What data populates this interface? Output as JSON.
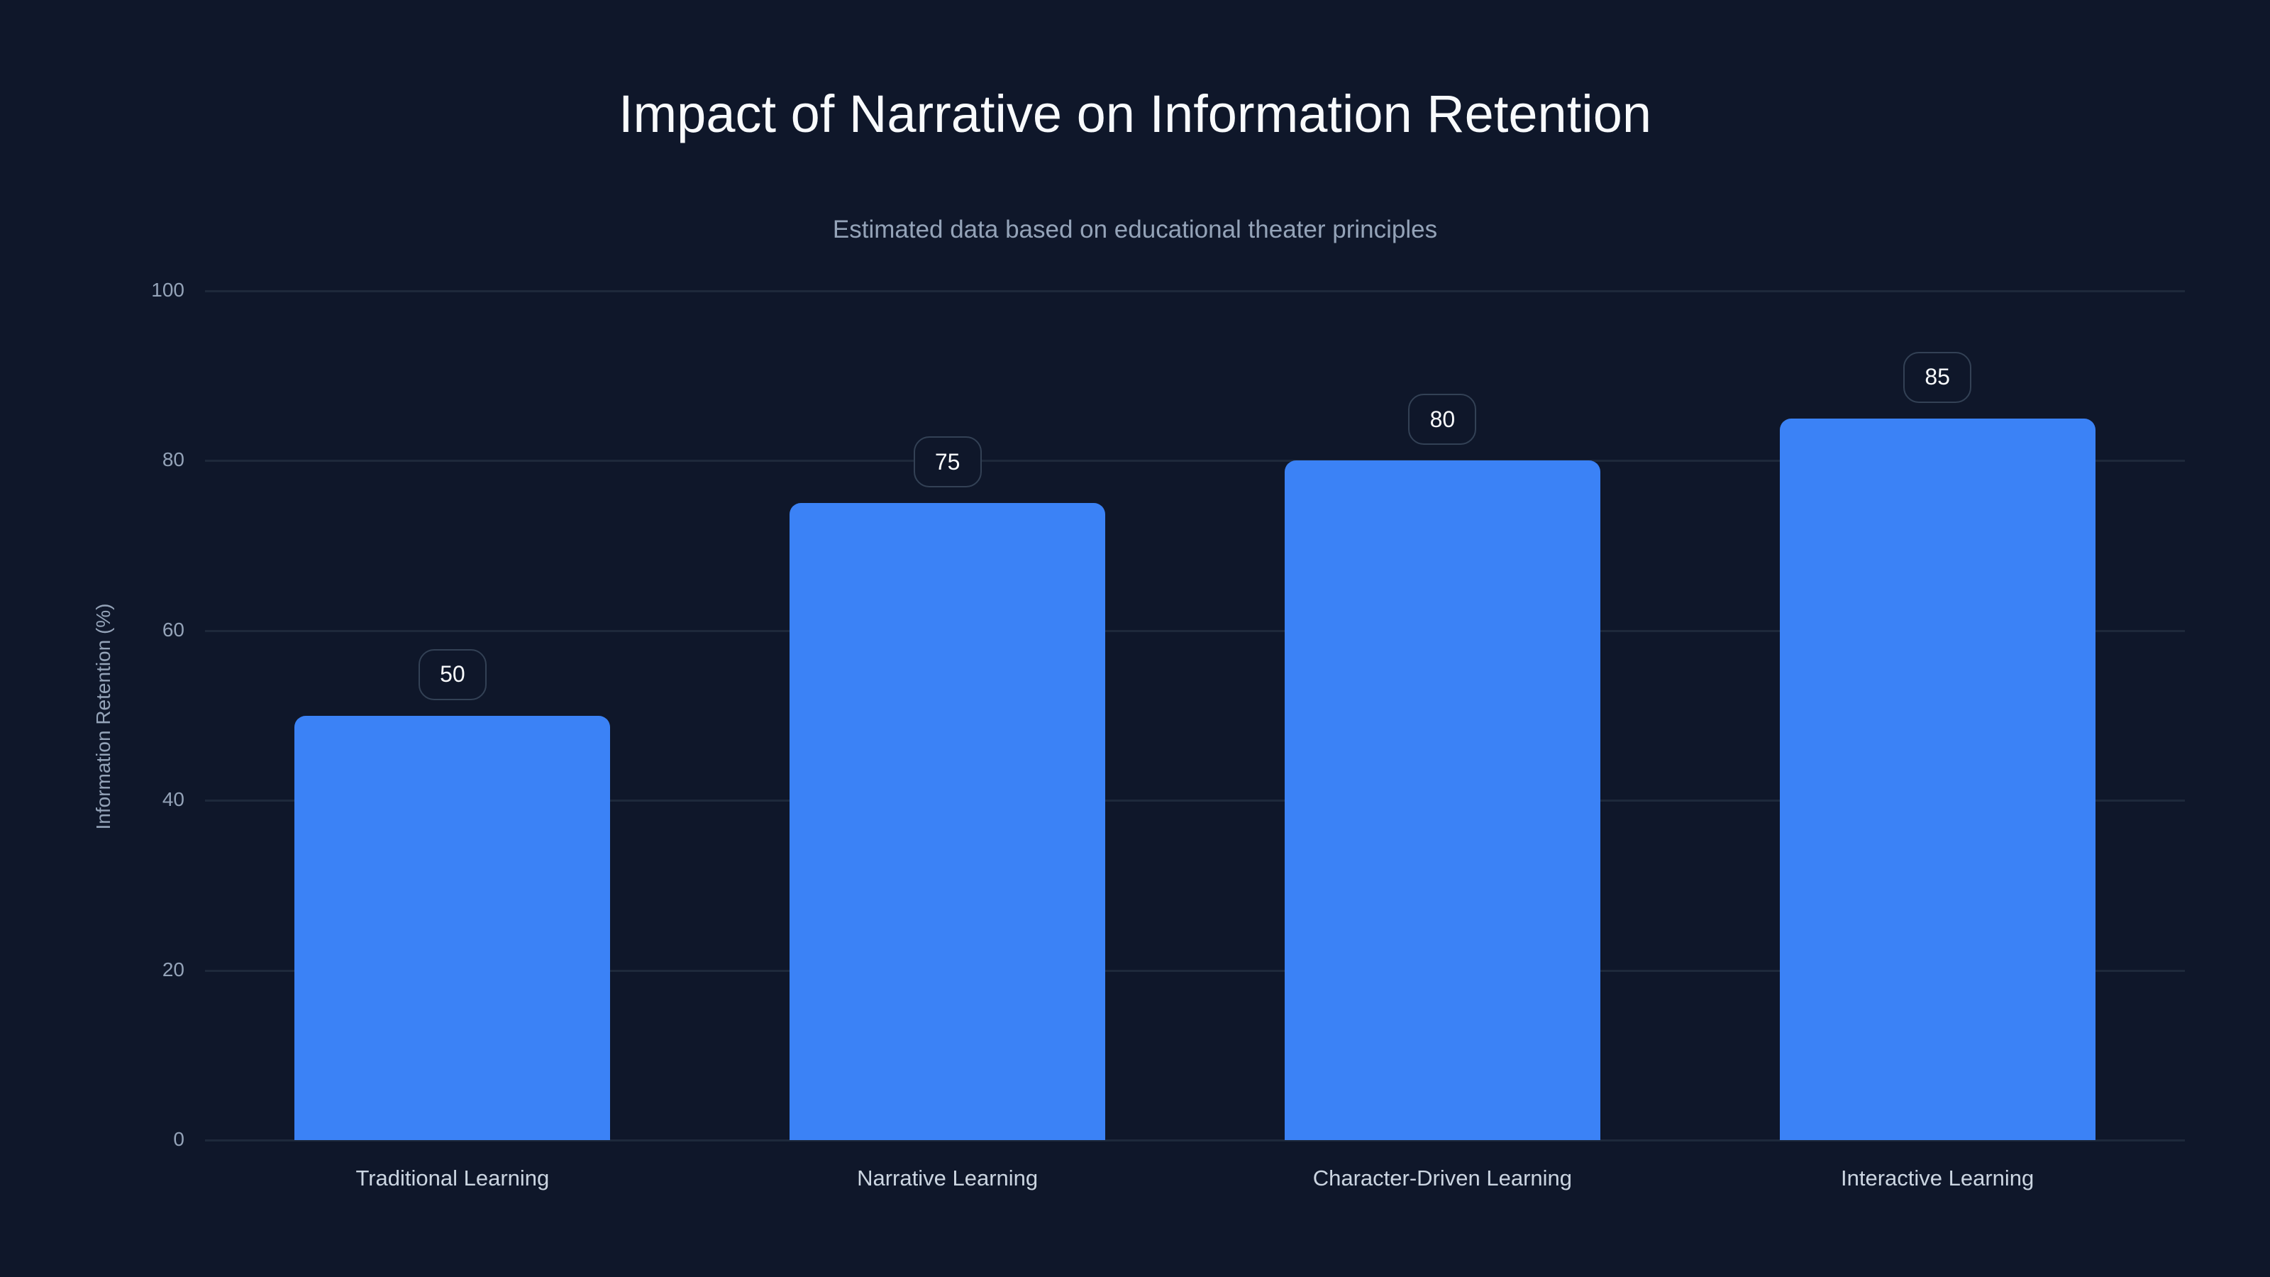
{
  "title": "Impact of Narrative on Information Retention",
  "subtitle": "Estimated data based on educational theater principles",
  "colors": {
    "background": "#0f172a",
    "bar": "#3b82f6",
    "grid": "#1e293b",
    "text": "#f8fafc",
    "muted": "#94a3b8"
  },
  "y_axis": {
    "title": "Information Retention (%)",
    "ticks": [
      "0",
      "20",
      "40",
      "60",
      "80",
      "100"
    ]
  },
  "bars": [
    {
      "label": "Traditional Learning",
      "value": "50"
    },
    {
      "label": "Narrative Learning",
      "value": "75"
    },
    {
      "label": "Character-Driven Learning",
      "value": "80"
    },
    {
      "label": "Interactive Learning",
      "value": "85"
    }
  ],
  "chart_data": {
    "type": "bar",
    "title": "Impact of Narrative on Information Retention",
    "subtitle": "Estimated data based on educational theater principles",
    "categories": [
      "Traditional Learning",
      "Narrative Learning",
      "Character-Driven Learning",
      "Interactive Learning"
    ],
    "values": [
      50,
      75,
      80,
      85
    ],
    "xlabel": "",
    "ylabel": "Information Retention (%)",
    "ylim": [
      0,
      100
    ],
    "yticks": [
      0,
      20,
      40,
      60,
      80,
      100
    ],
    "grid": true,
    "legend": null,
    "data_labels": true
  }
}
